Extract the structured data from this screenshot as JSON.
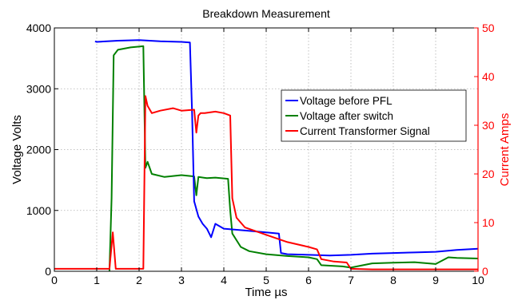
{
  "chart_data": {
    "type": "line",
    "title": "Breakdown Measurement",
    "xlabel": "Time µs",
    "ylabel_left": "Voltage Volts",
    "ylabel_right": "Current Amps",
    "xlim": [
      0,
      10
    ],
    "ylim_left": [
      0,
      4000
    ],
    "ylim_right": [
      0,
      50
    ],
    "x_ticks": [
      "0",
      "1",
      "2",
      "3",
      "4",
      "5",
      "6",
      "7",
      "8",
      "9",
      "10"
    ],
    "y_ticks_left": [
      "0",
      "1000",
      "2000",
      "3000",
      "4000"
    ],
    "y_ticks_right": [
      "0",
      "10",
      "20",
      "30",
      "40",
      "50"
    ],
    "grid": true,
    "legend_position": "upper-right",
    "series": [
      {
        "name": "Voltage before PFL",
        "color": "#0000ff",
        "axis": "left",
        "x": [
          0.96,
          1.0,
          1.5,
          2.0,
          2.5,
          3.0,
          3.2,
          3.25,
          3.3,
          3.4,
          3.5,
          3.6,
          3.7,
          3.8,
          4.0,
          4.5,
          5.0,
          5.3,
          5.35,
          5.5,
          6.0,
          6.5,
          7.0,
          7.5,
          8.0,
          8.5,
          9.0,
          9.5,
          10.0
        ],
        "y": [
          3780,
          3770,
          3790,
          3800,
          3780,
          3770,
          3760,
          2600,
          1150,
          900,
          780,
          700,
          560,
          780,
          700,
          670,
          640,
          620,
          300,
          280,
          270,
          260,
          270,
          290,
          300,
          310,
          320,
          350,
          370
        ]
      },
      {
        "name": "Voltage after switch",
        "color": "#008000",
        "axis": "left",
        "x": [
          1.3,
          1.35,
          1.4,
          1.5,
          1.8,
          2.1,
          2.15,
          2.2,
          2.3,
          2.6,
          3.0,
          3.3,
          3.35,
          3.4,
          3.6,
          3.8,
          4.1,
          4.15,
          4.2,
          4.4,
          4.6,
          5.0,
          5.5,
          6.0,
          6.2,
          6.3,
          6.8,
          7.0,
          7.5,
          8.0,
          8.5,
          9.0,
          9.3,
          9.5,
          10.0
        ],
        "y": [
          0,
          1200,
          3550,
          3640,
          3680,
          3700,
          1700,
          1800,
          1600,
          1550,
          1580,
          1560,
          1250,
          1550,
          1530,
          1540,
          1520,
          1000,
          620,
          400,
          330,
          280,
          250,
          230,
          200,
          100,
          80,
          60,
          130,
          140,
          150,
          120,
          230,
          220,
          210
        ]
      },
      {
        "name": "Current Transformer Signal",
        "color": "#ff0000",
        "axis": "right",
        "x": [
          0.0,
          1.0,
          1.3,
          1.38,
          1.45,
          2.1,
          2.15,
          2.2,
          2.3,
          2.5,
          2.8,
          3.0,
          3.3,
          3.35,
          3.4,
          3.45,
          3.55,
          3.8,
          4.0,
          4.15,
          4.2,
          4.3,
          4.5,
          5.0,
          5.5,
          6.0,
          6.2,
          6.3,
          6.6,
          6.9,
          7.0,
          7.5,
          8.0,
          9.0,
          10.0
        ],
        "y": [
          0.5,
          0.5,
          0.5,
          8.0,
          0.5,
          0.5,
          36.0,
          34.0,
          32.5,
          33.0,
          33.5,
          33.0,
          33.2,
          28.5,
          32.0,
          32.5,
          32.5,
          32.8,
          32.5,
          32.0,
          15.0,
          11.0,
          9.0,
          7.5,
          6.0,
          5.0,
          4.5,
          2.5,
          2.0,
          1.8,
          0.5,
          0.4,
          0.4,
          0.4,
          0.4
        ]
      }
    ]
  }
}
